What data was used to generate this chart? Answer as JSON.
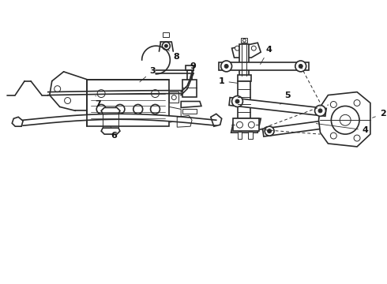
{
  "bg_color": "#ffffff",
  "line_color": "#2a2a2a",
  "label_color": "#111111",
  "figsize": [
    4.9,
    3.6
  ],
  "dpi": 100
}
